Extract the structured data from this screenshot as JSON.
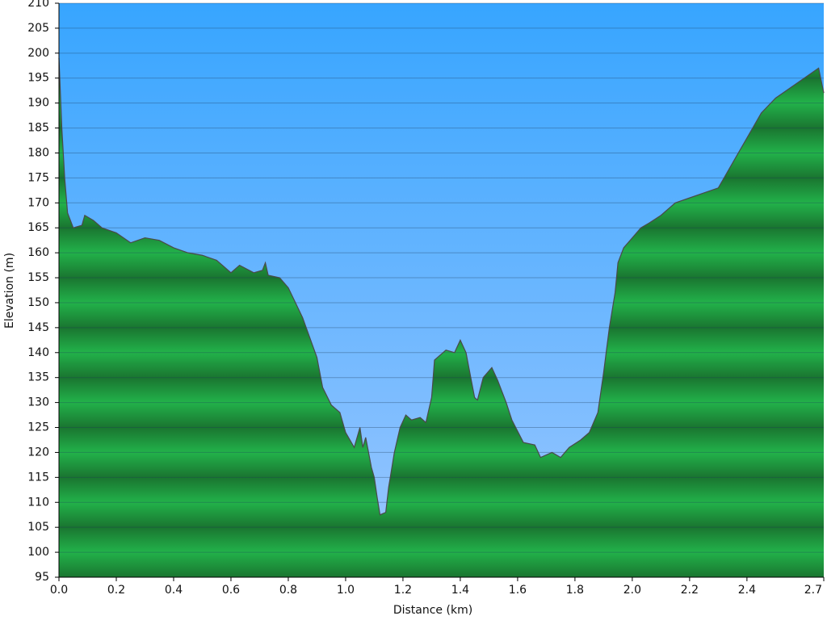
{
  "chart_data": {
    "type": "area",
    "xlabel": "Distance   (km)",
    "ylabel": "Elevation (m)",
    "x": [
      0,
      0.01,
      0.02,
      0.03,
      0.05,
      0.08,
      0.09,
      0.12,
      0.15,
      0.2,
      0.25,
      0.3,
      0.35,
      0.4,
      0.45,
      0.5,
      0.55,
      0.6,
      0.63,
      0.68,
      0.71,
      0.72,
      0.73,
      0.77,
      0.8,
      0.85,
      0.9,
      0.91,
      0.92,
      0.95,
      0.98,
      1.0,
      1.03,
      1.05,
      1.06,
      1.07,
      1.09,
      1.1,
      1.11,
      1.12,
      1.14,
      1.15,
      1.17,
      1.19,
      1.21,
      1.23,
      1.26,
      1.28,
      1.3,
      1.31,
      1.35,
      1.38,
      1.4,
      1.42,
      1.45,
      1.46,
      1.48,
      1.51,
      1.53,
      1.56,
      1.58,
      1.62,
      1.66,
      1.68,
      1.72,
      1.75,
      1.78,
      1.82,
      1.85,
      1.88,
      1.9,
      1.92,
      1.94,
      1.95,
      1.97,
      2.0,
      2.03,
      2.06,
      2.1,
      2.15,
      2.2,
      2.25,
      2.3,
      2.35,
      2.4,
      2.45,
      2.5,
      2.55,
      2.6,
      2.65,
      2.668
    ],
    "values": [
      199,
      185,
      175,
      168,
      165,
      165.5,
      167.5,
      166.5,
      165,
      164,
      162,
      163,
      162.5,
      161,
      160,
      159.5,
      158.5,
      156,
      157.5,
      156,
      156.5,
      158,
      155.5,
      155,
      153,
      147,
      139,
      136,
      133,
      129.5,
      128,
      124,
      121,
      125,
      121,
      123,
      117,
      115,
      111,
      107.5,
      108,
      113,
      120,
      125,
      127.5,
      126.5,
      127,
      126,
      131,
      138.5,
      140.5,
      140,
      142.5,
      140,
      131,
      130.5,
      135,
      137,
      134.5,
      130,
      126.5,
      122,
      121.5,
      119,
      120,
      119,
      121,
      122.5,
      124,
      128,
      136,
      145,
      152,
      158,
      161,
      163,
      165,
      166,
      167.5,
      170,
      171,
      172,
      173,
      178,
      183,
      188,
      191,
      193,
      195,
      197,
      192
    ],
    "color": "#22b24a",
    "line_color": "#4a4a4a",
    "sky_colors": [
      "#37a5ff",
      "#9cc7ff"
    ],
    "xlim": [
      0,
      2.668
    ],
    "ylim": [
      95,
      210
    ],
    "xticks": [
      {
        "value": 0,
        "label": "0.0"
      },
      0.2,
      0.4,
      0.6,
      0.8,
      {
        "value": 1,
        "label": "1.0"
      },
      1.2,
      1.4,
      1.6,
      1.8,
      {
        "value": 2,
        "label": "2.0"
      },
      2.2,
      2.4,
      {
        "value": 2.668,
        "label": "2.7"
      }
    ],
    "yticks": [
      95,
      100,
      105,
      110,
      115,
      120,
      125,
      130,
      135,
      140,
      145,
      150,
      155,
      160,
      165,
      170,
      175,
      180,
      185,
      190,
      195,
      200,
      205,
      210
    ],
    "grid": true
  }
}
